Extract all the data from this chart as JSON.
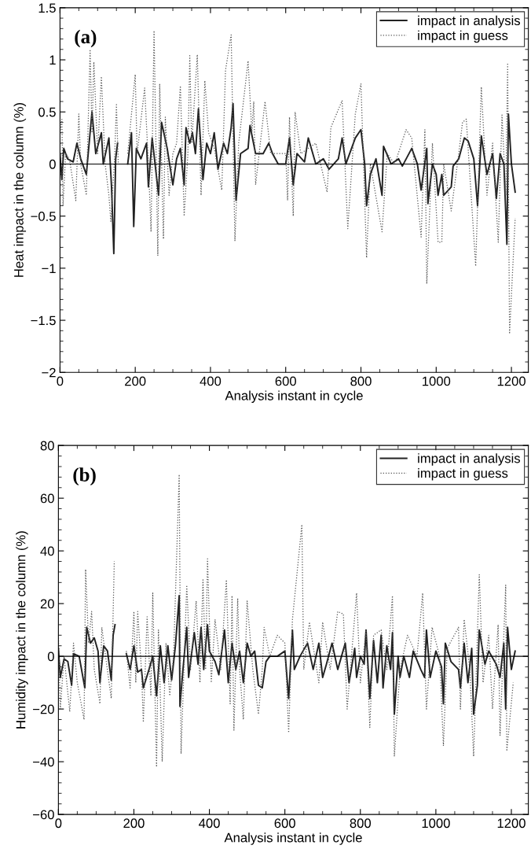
{
  "chart_data": [
    {
      "type": "line",
      "title": "(a)",
      "xlabel": "Analysis instant in cycle",
      "ylabel": "Heat impact in the column (%)",
      "xlim": [
        0,
        1245
      ],
      "xticks": [
        0,
        200,
        400,
        600,
        800,
        1000,
        1200
      ],
      "ylim": [
        -2,
        1.5
      ],
      "yticks": [
        -2,
        -1.5,
        -1,
        -0.5,
        0,
        0.5,
        1,
        1.5
      ],
      "grid": false,
      "legend": "top right",
      "ref_lines": [
        {
          "axis": "y",
          "value": 0,
          "color": "#000000"
        }
      ],
      "series": [
        {
          "name": "impact in analysis",
          "color": "#222222",
          "line_style": "solid",
          "x": [
            0,
            5,
            10,
            20,
            35,
            45,
            55,
            70,
            75,
            85,
            95,
            110,
            115,
            130,
            137,
            143,
            148,
            153,
            165,
            180,
            190,
            196,
            203,
            215,
            230,
            235,
            245,
            262,
            270,
            285,
            300,
            310,
            320,
            330,
            335,
            345,
            352,
            360,
            368,
            380,
            390,
            400,
            410,
            420,
            435,
            445,
            455,
            460,
            468,
            480,
            500,
            505,
            520,
            540,
            555,
            565,
            580,
            600,
            610,
            620,
            630,
            650,
            660,
            680,
            700,
            715,
            740,
            750,
            760,
            785,
            800,
            810,
            815,
            825,
            840,
            856,
            860,
            880,
            900,
            910,
            935,
            950,
            960,
            975,
            978,
            990,
            1000,
            1005,
            1015,
            1020,
            1040,
            1045,
            1060,
            1075,
            1085,
            1100,
            1110,
            1120,
            1135,
            1150,
            1160,
            1170,
            1180,
            1188,
            1192,
            1200,
            1210
          ],
          "values": [
            0.1,
            -0.15,
            0.15,
            0.05,
            0.02,
            0.2,
            0.05,
            -0.1,
            0.1,
            0.5,
            0.1,
            0.3,
            0.0,
            0.25,
            -0.22,
            -0.86,
            0.05,
            0.2,
            null,
            0.0,
            0.3,
            -0.6,
            0.15,
            0.05,
            0.2,
            -0.22,
            0.25,
            -0.3,
            0.4,
            0.15,
            -0.2,
            0.05,
            0.15,
            -0.2,
            0.35,
            0.2,
            0.3,
            0.1,
            0.53,
            -0.15,
            0.2,
            0.1,
            0.3,
            -0.05,
            0.2,
            0.1,
            0.35,
            0.58,
            -0.35,
            0.1,
            0.15,
            0.37,
            0.1,
            0.1,
            0.2,
            0.1,
            0.0,
            0.0,
            0.25,
            -0.2,
            0.1,
            0.02,
            0.25,
            0.0,
            0.05,
            -0.05,
            0.05,
            0.25,
            0.0,
            0.25,
            0.33,
            0.0,
            -0.4,
            -0.1,
            0.05,
            -0.3,
            0.17,
            0.0,
            0.05,
            -0.02,
            0.15,
            0.0,
            -0.25,
            0.15,
            -0.38,
            0.0,
            -0.1,
            -0.3,
            -0.1,
            -0.3,
            -0.22,
            -0.02,
            0.05,
            0.25,
            0.22,
            0.05,
            -0.4,
            0.27,
            -0.1,
            0.1,
            -0.33,
            0.1,
            0.0,
            -0.77,
            0.48,
            0.0,
            -0.27
          ]
        },
        {
          "name": "impact in guess",
          "color": "#555555",
          "line_style": "dotted",
          "x": [
            0,
            5,
            8,
            15,
            25,
            42,
            50,
            55,
            70,
            80,
            85,
            90,
            100,
            110,
            120,
            130,
            135,
            145,
            150,
            155,
            165,
            180,
            200,
            205,
            225,
            235,
            242,
            250,
            260,
            265,
            275,
            280,
            290,
            300,
            310,
            320,
            330,
            340,
            345,
            350,
            365,
            375,
            385,
            395,
            410,
            430,
            440,
            455,
            465,
            475,
            500,
            510,
            515,
            520,
            545,
            560,
            600,
            605,
            610,
            620,
            625,
            640,
            680,
            710,
            720,
            750,
            765,
            785,
            800,
            815,
            825,
            856,
            870,
            890,
            920,
            935,
            960,
            970,
            975,
            990,
            1005,
            1015,
            1020,
            1040,
            1060,
            1070,
            1080,
            1105,
            1120,
            1135,
            1150,
            1165,
            1175,
            1185,
            1190,
            1195,
            1210
          ],
          "values": [
            0.3,
            0.43,
            -0.4,
            0.1,
            0.05,
            -0.35,
            0.48,
            0.0,
            -0.3,
            1.1,
            0.3,
            0.98,
            0.1,
            0.84,
            0.0,
            -0.3,
            -0.55,
            0.05,
            0.57,
            0.0,
            null,
            0.1,
            0.86,
            0.1,
            0.73,
            0.0,
            -0.65,
            1.28,
            -0.88,
            0.77,
            -0.72,
            0.45,
            -0.3,
            0.1,
            0.2,
            0.75,
            -0.5,
            0.1,
            1.04,
            0.2,
            1.05,
            -0.3,
            0.8,
            0.3,
            0.15,
            -0.25,
            0.9,
            1.24,
            -0.74,
            0.2,
            0.99,
            0.3,
            0.6,
            -0.2,
            0.6,
            0.1,
            0.1,
            -0.35,
            0.45,
            -0.5,
            0.5,
            0.1,
            0.2,
            -0.27,
            0.35,
            0.61,
            -0.62,
            0.48,
            0.77,
            -0.9,
            0.0,
            -0.65,
            0.1,
            0.0,
            0.33,
            0.25,
            -0.7,
            0.33,
            -1.15,
            0.2,
            -0.75,
            -0.75,
            0.0,
            -0.45,
            0.1,
            0.4,
            0.43,
            -0.98,
            0.74,
            -0.3,
            0.2,
            -0.75,
            0.47,
            -0.3,
            0.97,
            -1.63,
            -0.52
          ]
        }
      ]
    },
    {
      "type": "line",
      "title": "(b)",
      "xlabel": "Analysis instant in cycle",
      "ylabel": "Humidity impact in the column (%)",
      "xlim": [
        0,
        1245
      ],
      "xticks": [
        0,
        200,
        400,
        600,
        800,
        1000,
        1200
      ],
      "ylim": [
        -60,
        80
      ],
      "yticks": [
        -60,
        -40,
        -20,
        0,
        20,
        40,
        60,
        80
      ],
      "grid": false,
      "legend": "top right",
      "ref_lines": [
        {
          "axis": "y",
          "value": 0,
          "color": "#000000"
        }
      ],
      "series": [
        {
          "name": "impact in analysis",
          "color": "#222222",
          "line_style": "solid",
          "x": [
            0,
            5,
            15,
            25,
            35,
            40,
            55,
            70,
            75,
            85,
            95,
            105,
            110,
            120,
            130,
            140,
            145,
            150,
            165,
            180,
            190,
            200,
            210,
            220,
            225,
            240,
            250,
            260,
            270,
            280,
            290,
            300,
            310,
            320,
            322,
            330,
            340,
            345,
            360,
            370,
            378,
            385,
            395,
            400,
            415,
            425,
            440,
            450,
            460,
            470,
            480,
            490,
            500,
            510,
            520,
            530,
            540,
            550,
            560,
            580,
            600,
            610,
            620,
            625,
            640,
            660,
            675,
            690,
            700,
            710,
            725,
            740,
            760,
            770,
            785,
            790,
            800,
            810,
            815,
            825,
            835,
            845,
            855,
            860,
            870,
            880,
            885,
            890,
            900,
            905,
            915,
            930,
            940,
            960,
            970,
            975,
            985,
            1000,
            1015,
            1020,
            1025,
            1040,
            1060,
            1065,
            1075,
            1085,
            1095,
            1100,
            1110,
            1115,
            1130,
            1140,
            1160,
            1170,
            1180,
            1185,
            1190,
            1200,
            1210
          ],
          "values": [
            3,
            -8,
            -1,
            -2,
            -11,
            1,
            0,
            -12,
            11,
            5,
            7,
            2,
            -10,
            4,
            2,
            -9,
            8,
            12,
            null,
            1,
            -5,
            4,
            -6,
            -5,
            -12,
            -5,
            0,
            -15,
            4,
            -10,
            4,
            -9,
            4,
            23,
            -19,
            -5,
            11,
            -8,
            9,
            -3,
            11,
            -5,
            12,
            2,
            -2,
            -7,
            10,
            -10,
            5,
            -5,
            2,
            -10,
            5,
            0,
            2,
            -11,
            -12,
            -2,
            0,
            0,
            2,
            -16,
            10,
            -5,
            0,
            5,
            -5,
            5,
            -8,
            -3,
            5,
            -5,
            5,
            -10,
            3,
            -8,
            0,
            -3,
            10,
            -16,
            6,
            -10,
            8,
            -12,
            4,
            -5,
            9,
            -22,
            0,
            -8,
            0,
            -8,
            2,
            -5,
            -8,
            10,
            -8,
            2,
            -4,
            -18,
            5,
            -2,
            -5,
            -12,
            5,
            -10,
            3,
            -22,
            -11,
            10,
            -3,
            2,
            -3,
            -8,
            5,
            -20,
            11,
            -5,
            2
          ]
        },
        {
          "name": "impact in guess",
          "color": "#555555",
          "line_style": "dotted",
          "x": [
            0,
            5,
            15,
            30,
            40,
            50,
            68,
            72,
            80,
            88,
            95,
            110,
            115,
            125,
            140,
            148,
            165,
            180,
            190,
            200,
            205,
            210,
            220,
            225,
            235,
            245,
            250,
            260,
            265,
            275,
            285,
            295,
            305,
            320,
            325,
            340,
            350,
            365,
            375,
            383,
            390,
            395,
            405,
            415,
            430,
            445,
            455,
            460,
            465,
            475,
            480,
            490,
            500,
            515,
            530,
            540,
            545,
            560,
            580,
            600,
            610,
            620,
            645,
            650,
            665,
            690,
            700,
            720,
            740,
            755,
            765,
            790,
            800,
            815,
            825,
            835,
            855,
            870,
            885,
            890,
            905,
            925,
            950,
            965,
            975,
            990,
            1010,
            1020,
            1030,
            1060,
            1065,
            1075,
            1090,
            1100,
            1115,
            1125,
            1140,
            1150,
            1165,
            1170,
            1185,
            1188,
            1205
          ],
          "values": [
            8,
            -20,
            0,
            -21,
            5,
            -10,
            -24,
            33,
            5,
            17,
            -5,
            -18,
            11,
            0,
            -16,
            36,
            null,
            2,
            -12,
            17,
            -10,
            17,
            -5,
            -25,
            15,
            -15,
            24,
            -42,
            10,
            -40,
            5,
            -15,
            0,
            69,
            -37,
            27,
            -5,
            21,
            -10,
            29,
            -5,
            37,
            -10,
            14,
            -5,
            29,
            -18,
            23,
            -28,
            22,
            -5,
            -24,
            21,
            -5,
            -22,
            -5,
            11,
            0,
            8,
            5,
            -29,
            14,
            50,
            -5,
            13,
            -10,
            13,
            -5,
            17,
            16,
            -20,
            24,
            -10,
            10,
            -27,
            8,
            10,
            -5,
            23,
            -38,
            -5,
            8,
            0,
            24,
            -20,
            11,
            0,
            -34,
            3,
            11,
            -20,
            14,
            -5,
            -38,
            31,
            -10,
            8,
            -20,
            12,
            -30,
            27,
            -36,
            -10
          ]
        }
      ]
    }
  ]
}
